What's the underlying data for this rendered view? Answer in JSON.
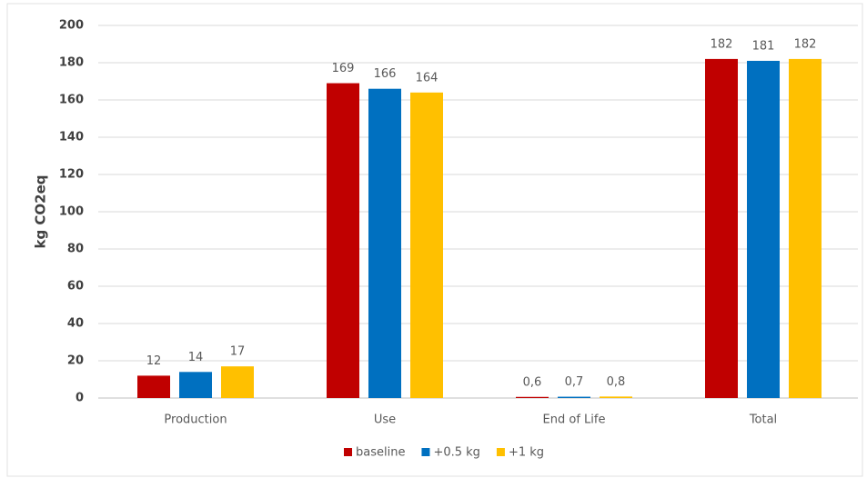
{
  "chart_data": {
    "type": "bar",
    "y_label": "kg CO2eq",
    "categories": [
      "Production",
      "Use",
      "End of Life",
      "Total"
    ],
    "series": [
      {
        "name": "baseline",
        "color": "#c00000",
        "values": [
          12,
          169,
          0.6,
          182
        ],
        "value_labels": [
          "12",
          "169",
          "0,6",
          "182"
        ]
      },
      {
        "name": "+0.5 kg",
        "color": "#0070c0",
        "values": [
          14,
          166,
          0.7,
          181
        ],
        "value_labels": [
          "14",
          "166",
          "0,7",
          "181"
        ]
      },
      {
        "name": "+1 kg",
        "color": "#ffc000",
        "values": [
          17,
          164,
          0.8,
          182
        ],
        "value_labels": [
          "17",
          "164",
          "0,8",
          "182"
        ]
      }
    ],
    "ylim": [
      0,
      200
    ],
    "yticks": [
      0,
      20,
      40,
      60,
      80,
      100,
      120,
      140,
      160,
      180,
      200
    ],
    "grid": true,
    "legend": "bottom"
  }
}
